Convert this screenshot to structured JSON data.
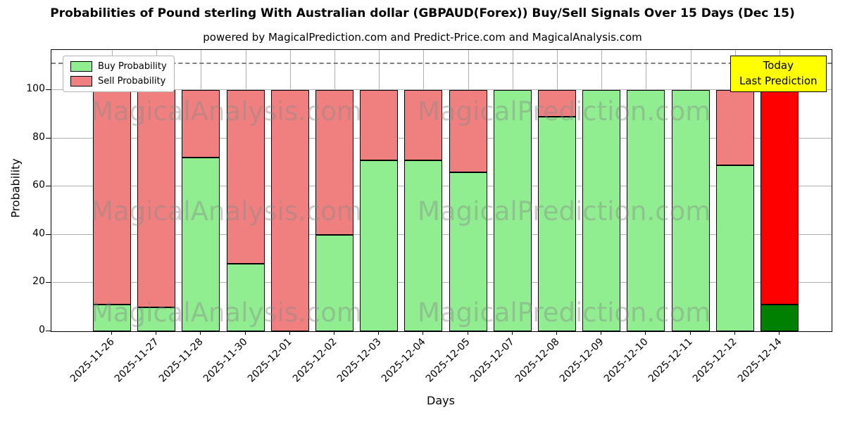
{
  "chart_data": {
    "type": "bar",
    "stacked": true,
    "title": "Probabilities of Pound sterling With Australian dollar (GBPAUD(Forex)) Buy/Sell Signals Over 15 Days (Dec 15)",
    "subtitle": "powered by MagicalPrediction.com and Predict-Price.com and MagicalAnalysis.com",
    "xlabel": "Days",
    "ylabel": "Probability",
    "categories": [
      "2025-11-26",
      "2025-11-27",
      "2025-11-28",
      "2025-11-30",
      "2025-12-01",
      "2025-12-02",
      "2025-12-03",
      "2025-12-04",
      "2025-12-05",
      "2025-12-07",
      "2025-12-08",
      "2025-12-09",
      "2025-12-10",
      "2025-12-11",
      "2025-12-12",
      "2025-12-14"
    ],
    "series": [
      {
        "name": "Buy Probability",
        "color": "#90EE90",
        "values": [
          11,
          10,
          72,
          28,
          0,
          40,
          71,
          71,
          66,
          100,
          89,
          100,
          100,
          100,
          69,
          11
        ]
      },
      {
        "name": "Sell Probability",
        "color": "#F08080",
        "values": [
          89,
          90,
          28,
          72,
          100,
          60,
          29,
          29,
          34,
          0,
          11,
          0,
          0,
          0,
          31,
          89
        ]
      }
    ],
    "last_bar_colors": {
      "buy": "#008000",
      "sell": "#FF0000"
    },
    "yticks": [
      0,
      20,
      40,
      60,
      80,
      100
    ],
    "ylim": [
      0,
      116.7
    ],
    "dashed_line_y": 111,
    "grid": true,
    "legend_position": "top-left",
    "annotation": {
      "lines": [
        "Today",
        "Last Prediction"
      ],
      "bg_color": "#FFFF00"
    },
    "watermark_texts": [
      "MagicalAnalysis.com",
      "MagicalPrediction.com"
    ]
  }
}
